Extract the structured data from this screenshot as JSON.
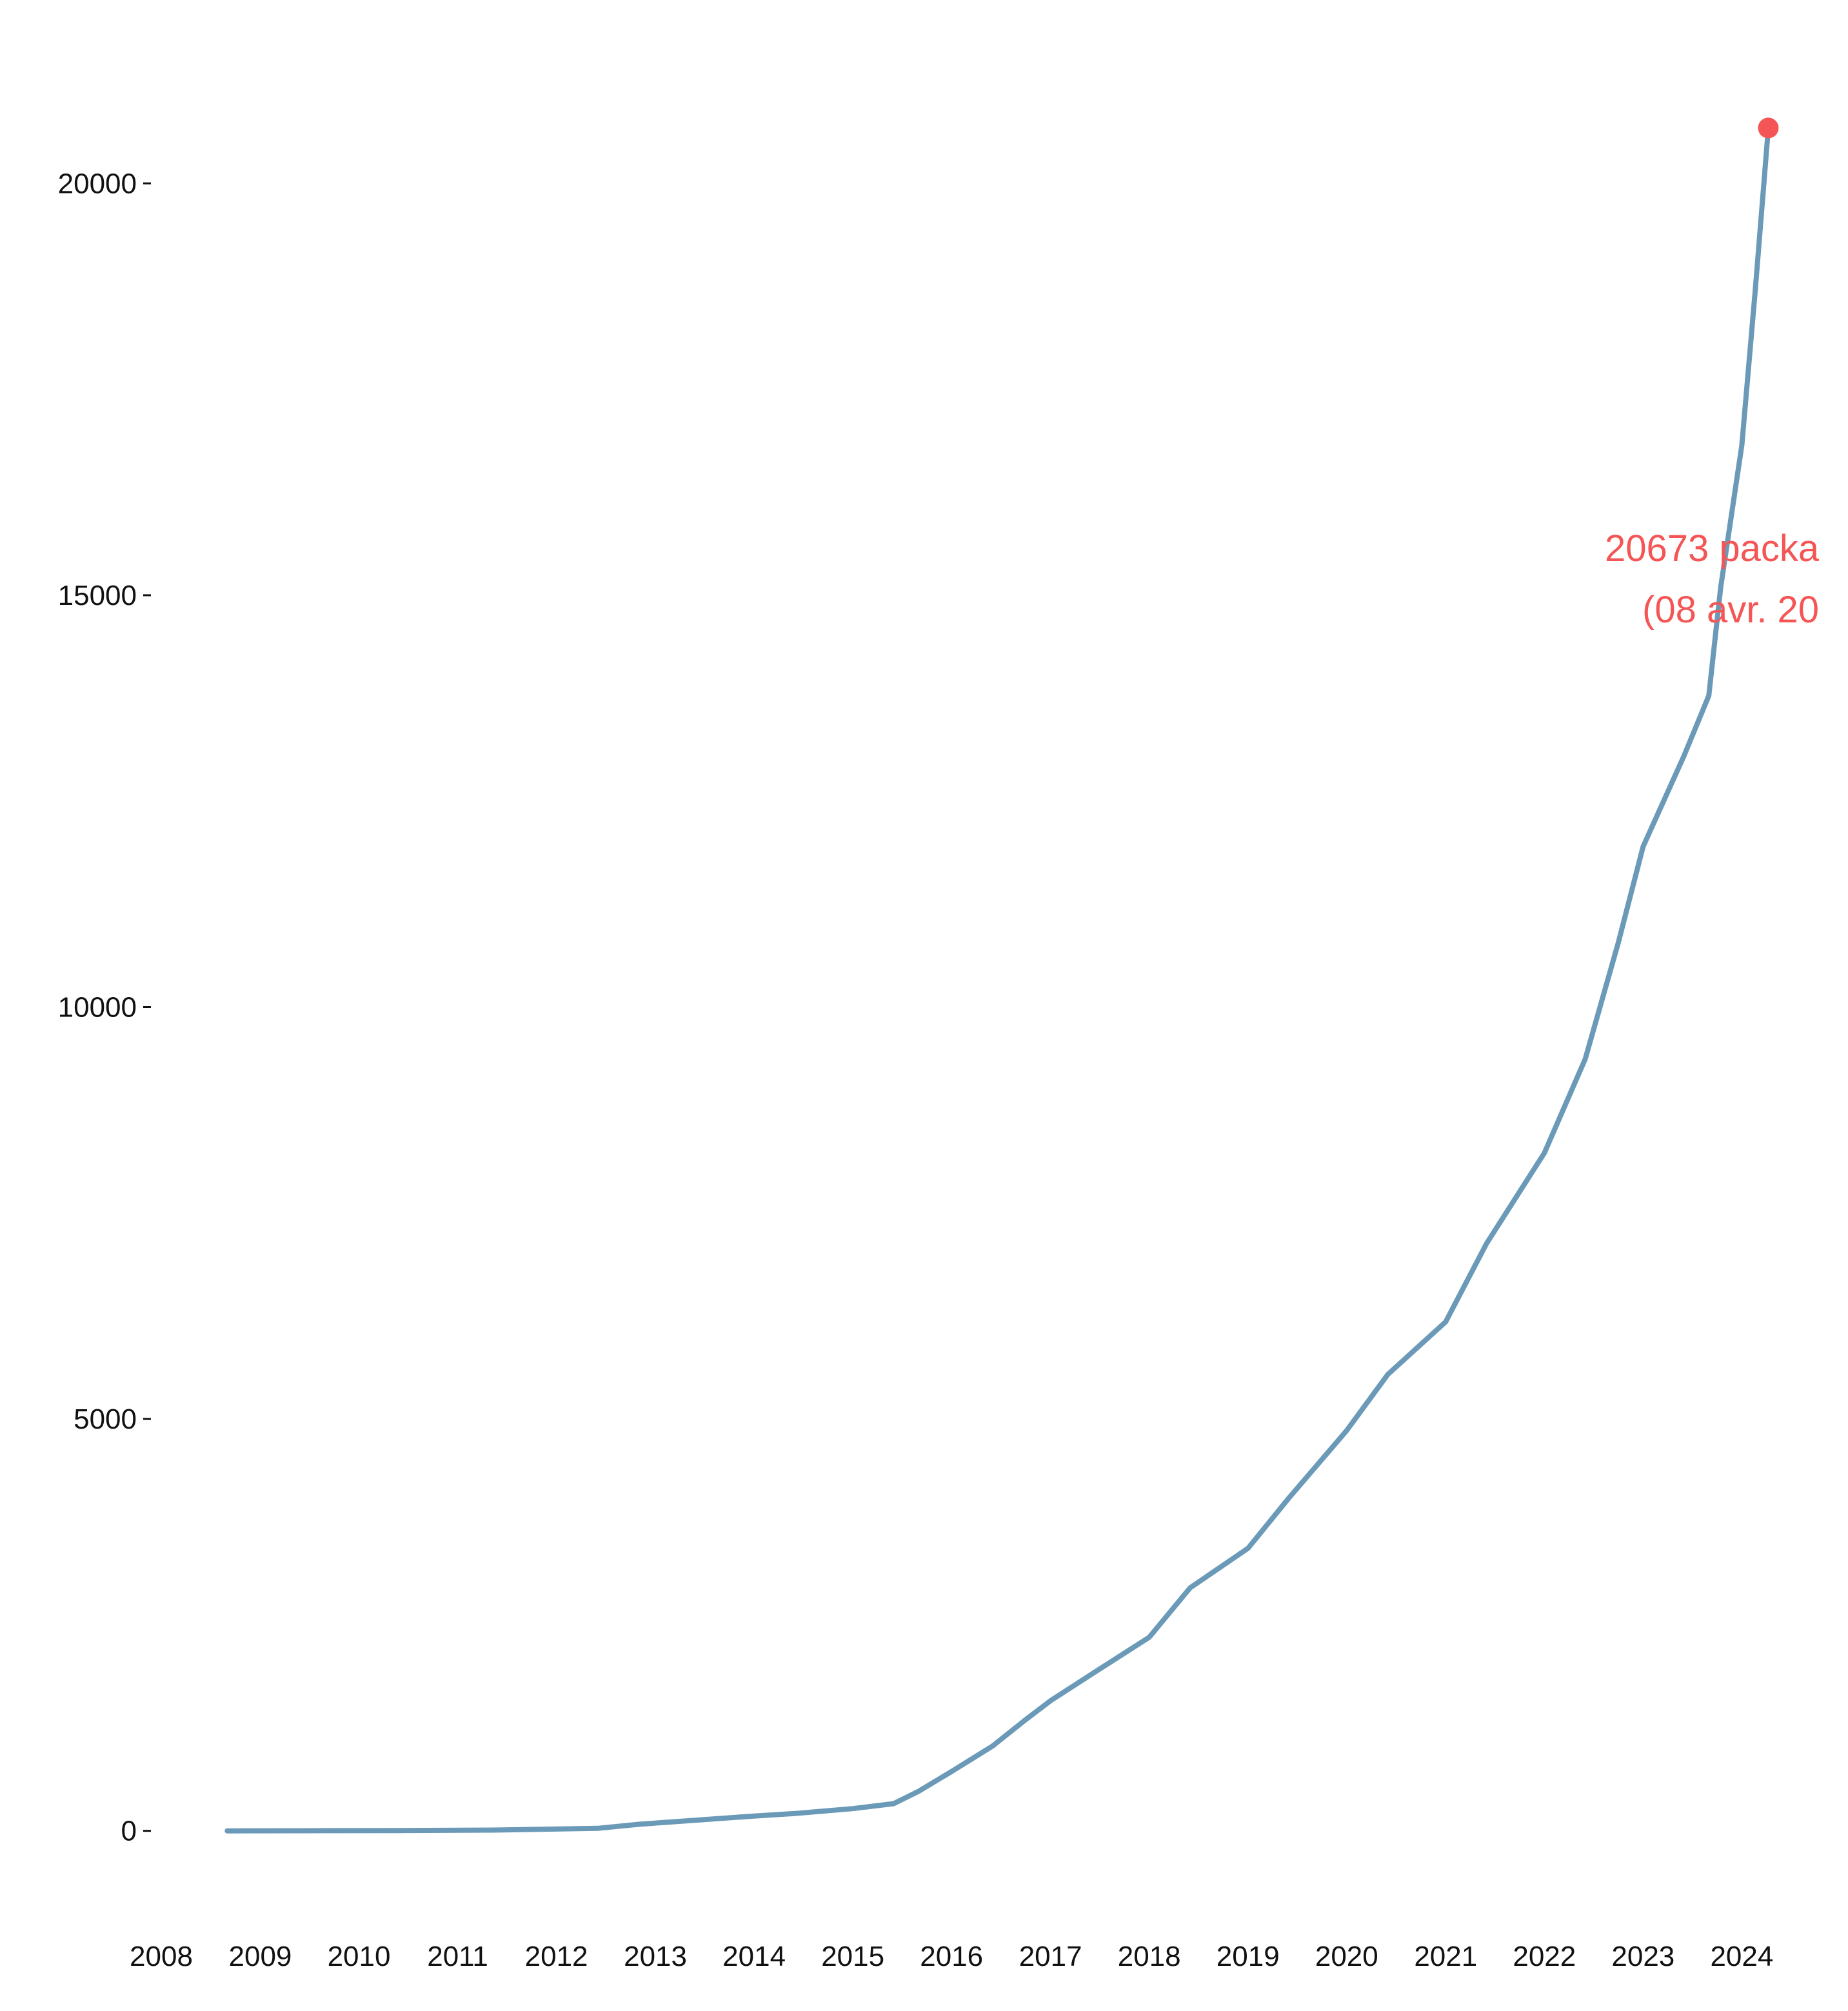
{
  "chart_data": {
    "type": "line",
    "title": "",
    "xlabel": "",
    "ylabel": "",
    "x_tick_labels": [
      "2008",
      "2009",
      "2010",
      "2011",
      "2012",
      "2013",
      "2014",
      "2015",
      "2016",
      "2017",
      "2018",
      "2019",
      "2020",
      "2021",
      "2022",
      "2023",
      "2024"
    ],
    "y_tick_labels": [
      "0",
      "5000",
      "10000",
      "15000",
      "20000"
    ],
    "y_ticks": [
      0,
      5000,
      10000,
      15000,
      20000
    ],
    "xlim": [
      "2008-01-01",
      "2024-06-15"
    ],
    "ylim": [
      -950,
      21600
    ],
    "grid": false,
    "legend": "none",
    "colors": {
      "line": "#6b9ab8",
      "highlight": "#f45555",
      "text": "#111111"
    },
    "series": [
      {
        "x": [
          "2008-09-01",
          "2009-06-01",
          "2010-06-01",
          "2011-06-01",
          "2012-06-01",
          "2012-11-01",
          "2013-06-01",
          "2014-01-01",
          "2014-06-01",
          "2015-01-01",
          "2015-06-01",
          "2015-09-01",
          "2016-01-01",
          "2016-06-01",
          "2016-10-01",
          "2017-01-01",
          "2017-06-01",
          "2018-01-01",
          "2018-06-01",
          "2019-01-01",
          "2019-06-01",
          "2020-01-01",
          "2020-06-01",
          "2021-01-01",
          "2021-06-01",
          "2022-01-01",
          "2022-06-01",
          "2022-10-01",
          "2023-01-01",
          "2023-06-01",
          "2023-09-01",
          "2023-10-15",
          "2024-01-01",
          "2024-02-20",
          "2024-04-08"
        ],
        "y": [
          0,
          1,
          4,
          10,
          30,
          80,
          130,
          180,
          210,
          270,
          330,
          480,
          720,
          1030,
          1350,
          1580,
          1900,
          2350,
          2950,
          3430,
          4040,
          4860,
          5540,
          6180,
          7130,
          8230,
          9370,
          10780,
          11950,
          13050,
          13780,
          15100,
          16820,
          18720,
          20673
        ]
      }
    ],
    "highlight_point": {
      "x": "2024-04-08",
      "y": 20673
    },
    "annotation": {
      "line1": "20673 packa",
      "line2": "(08 avr. 20"
    }
  }
}
